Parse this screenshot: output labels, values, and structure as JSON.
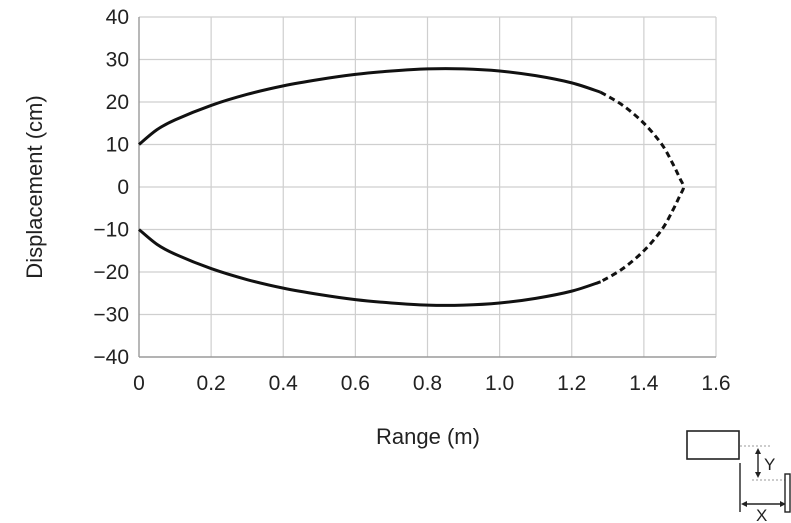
{
  "chart_data": {
    "type": "line",
    "title": "",
    "xlabel": "Range (m)",
    "ylabel": "Displacement (cm)",
    "xlim": [
      0,
      1.6
    ],
    "ylim": [
      -40,
      40
    ],
    "x_ticks": [
      "0",
      "0.2",
      "0.4",
      "0.6",
      "0.8",
      "1.0",
      "1.2",
      "1.4",
      "1.6"
    ],
    "y_ticks": [
      "40",
      "30",
      "20",
      "10",
      "0",
      "−10",
      "−20",
      "−30",
      "−40"
    ],
    "grid": true,
    "series": [
      {
        "line_style": "solid",
        "x": [
          0.0,
          0.05,
          0.1,
          0.2,
          0.3,
          0.4,
          0.5,
          0.6,
          0.7,
          0.8,
          0.9,
          1.0,
          1.1,
          1.2,
          1.28
        ],
        "y": [
          10,
          13.5,
          15.8,
          19.2,
          21.8,
          23.8,
          25.3,
          26.5,
          27.3,
          27.8,
          27.8,
          27.3,
          26.2,
          24.5,
          22.3
        ]
      },
      {
        "line_style": "dashed",
        "x": [
          1.28,
          1.34,
          1.4,
          1.45,
          1.48,
          1.5,
          1.51,
          1.5,
          1.48,
          1.45,
          1.4,
          1.34,
          1.28
        ],
        "y": [
          22.3,
          19.3,
          15.0,
          10.0,
          5.5,
          2.0,
          0.0,
          -2.0,
          -5.5,
          -10.0,
          -15.0,
          -19.3,
          -22.3
        ]
      },
      {
        "line_style": "solid",
        "x": [
          0.0,
          0.05,
          0.1,
          0.2,
          0.3,
          0.4,
          0.5,
          0.6,
          0.7,
          0.8,
          0.9,
          1.0,
          1.1,
          1.2,
          1.28
        ],
        "y": [
          -10,
          -13.5,
          -15.8,
          -19.2,
          -21.8,
          -23.8,
          -25.3,
          -26.5,
          -27.3,
          -27.8,
          -27.8,
          -27.3,
          -26.2,
          -24.5,
          -22.3
        ]
      }
    ],
    "inset": {
      "label_y": "Y",
      "label_x": "X"
    }
  }
}
